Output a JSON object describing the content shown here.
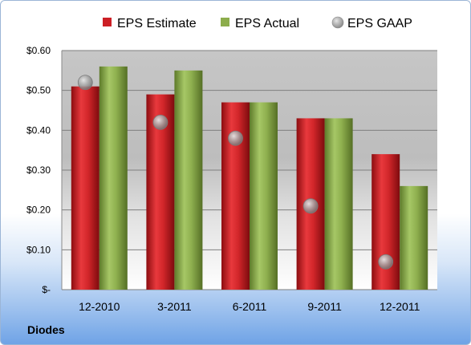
{
  "company": "Diodes",
  "chart_data": {
    "type": "bar",
    "categories": [
      "12-2010",
      "3-2011",
      "6-2011",
      "9-2011",
      "12-2011"
    ],
    "series": [
      {
        "name": "EPS Estimate",
        "kind": "bar",
        "color": "#cc1f25",
        "values": [
          0.51,
          0.49,
          0.47,
          0.43,
          0.34
        ]
      },
      {
        "name": "EPS Actual",
        "kind": "bar",
        "color": "#8cad4c",
        "values": [
          0.56,
          0.55,
          0.47,
          0.43,
          0.26
        ]
      },
      {
        "name": "EPS GAAP",
        "kind": "marker",
        "color": "#9a9a9a",
        "values": [
          0.52,
          0.42,
          0.38,
          0.21,
          0.07
        ]
      }
    ],
    "ylim": [
      0,
      0.6
    ],
    "yticks": [
      0,
      0.1,
      0.2,
      0.3,
      0.4,
      0.5,
      0.6
    ],
    "ytick_labels": [
      "$-",
      "$0.10",
      "$0.20",
      "$0.30",
      "$0.40",
      "$0.50",
      "$0.60"
    ],
    "grid": true,
    "legend_position": "top"
  }
}
